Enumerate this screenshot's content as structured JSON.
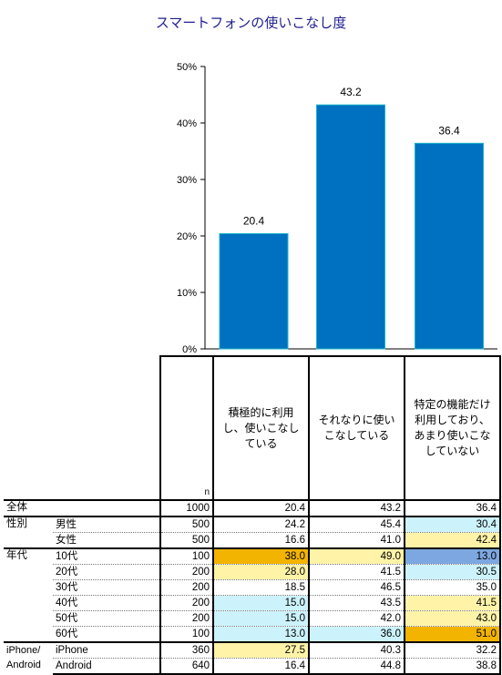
{
  "chart_data": {
    "type": "bar",
    "title": "スマートフォンの使いこなし度",
    "categories": [
      "積極的に利用し、使いこなしている",
      "それなりに使いこなしている",
      "特定の機能だけ利用しており、あまり使いこなしていない"
    ],
    "values": [
      20.4,
      43.2,
      36.4
    ],
    "value_labels": [
      "20.4",
      "43.2",
      "36.4"
    ],
    "yticks": [
      "0%",
      "10%",
      "20%",
      "30%",
      "40%",
      "50%"
    ],
    "ylim": [
      0,
      50
    ],
    "grid": false,
    "colors": {
      "bar": "#0070c0",
      "bar_edge": "#19b3c9"
    }
  },
  "table": {
    "n_header": "n",
    "columns": [
      "積極的に利用し、使いこなしている",
      "それなりに使いこなしている",
      "特定の機能だけ利用しており、あまり使いこなしていない"
    ],
    "groups": [
      {
        "label": "全体",
        "rows": [
          {
            "sub": "",
            "n": "1000",
            "values": [
              "20.4",
              "43.2",
              "36.4"
            ],
            "bg": [
              "",
              "",
              ""
            ]
          }
        ]
      },
      {
        "label": "性別",
        "rows": [
          {
            "sub": "男性",
            "n": "500",
            "values": [
              "24.2",
              "45.4",
              "30.4"
            ],
            "bg": [
              "",
              "",
              "#ccf2fb"
            ]
          },
          {
            "sub": "女性",
            "n": "500",
            "values": [
              "16.6",
              "41.0",
              "42.4"
            ],
            "bg": [
              "",
              "",
              "#fff3a8"
            ]
          }
        ]
      },
      {
        "label": "年代",
        "rows": [
          {
            "sub": "10代",
            "n": "100",
            "values": [
              "38.0",
              "49.0",
              "13.0"
            ],
            "bg": [
              "#f3b400",
              "#fff3a8",
              "#7da7e0"
            ]
          },
          {
            "sub": "20代",
            "n": "200",
            "values": [
              "28.0",
              "41.5",
              "30.5"
            ],
            "bg": [
              "#fff3a8",
              "",
              "#ccf2fb"
            ]
          },
          {
            "sub": "30代",
            "n": "200",
            "values": [
              "18.5",
              "46.5",
              "35.0"
            ],
            "bg": [
              "",
              "",
              ""
            ]
          },
          {
            "sub": "40代",
            "n": "200",
            "values": [
              "15.0",
              "43.5",
              "41.5"
            ],
            "bg": [
              "#ccf2fb",
              "",
              "#fff3a8"
            ]
          },
          {
            "sub": "50代",
            "n": "200",
            "values": [
              "15.0",
              "42.0",
              "43.0"
            ],
            "bg": [
              "#ccf2fb",
              "",
              "#fff3a8"
            ]
          },
          {
            "sub": "60代",
            "n": "100",
            "values": [
              "13.0",
              "36.0",
              "51.0"
            ],
            "bg": [
              "#ccf2fb",
              "#ccf2fb",
              "#f3b400"
            ]
          }
        ]
      },
      {
        "label": "iPhone/ Android",
        "rows": [
          {
            "sub": "iPhone",
            "n": "360",
            "values": [
              "27.5",
              "40.3",
              "32.2"
            ],
            "bg": [
              "#fff3a8",
              "",
              ""
            ]
          },
          {
            "sub": "Android",
            "n": "640",
            "values": [
              "16.4",
              "44.8",
              "38.8"
            ],
            "bg": [
              "",
              "",
              ""
            ]
          }
        ]
      }
    ]
  }
}
